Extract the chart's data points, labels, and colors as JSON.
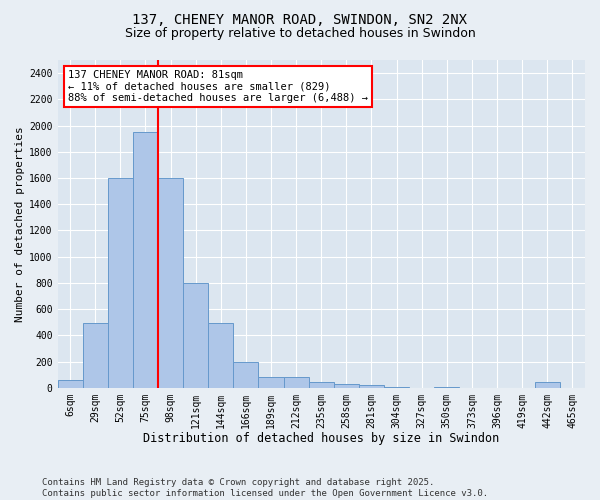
{
  "title": "137, CHENEY MANOR ROAD, SWINDON, SN2 2NX",
  "subtitle": "Size of property relative to detached houses in Swindon",
  "xlabel": "Distribution of detached houses by size in Swindon",
  "ylabel": "Number of detached properties",
  "categories": [
    "6sqm",
    "29sqm",
    "52sqm",
    "75sqm",
    "98sqm",
    "121sqm",
    "144sqm",
    "166sqm",
    "189sqm",
    "212sqm",
    "235sqm",
    "258sqm",
    "281sqm",
    "304sqm",
    "327sqm",
    "350sqm",
    "373sqm",
    "396sqm",
    "419sqm",
    "442sqm",
    "465sqm"
  ],
  "values": [
    60,
    490,
    1600,
    1950,
    1600,
    800,
    490,
    200,
    80,
    80,
    40,
    30,
    20,
    5,
    0,
    5,
    0,
    0,
    0,
    40,
    0
  ],
  "bar_color": "#aec6e8",
  "bar_edge_color": "#6699cc",
  "vline_color": "red",
  "vline_xidx": 3.5,
  "annotation_text": "137 CHENEY MANOR ROAD: 81sqm\n← 11% of detached houses are smaller (829)\n88% of semi-detached houses are larger (6,488) →",
  "ylim": [
    0,
    2500
  ],
  "yticks": [
    0,
    200,
    400,
    600,
    800,
    1000,
    1200,
    1400,
    1600,
    1800,
    2000,
    2200,
    2400
  ],
  "bg_color": "#e8eef4",
  "plot_bg_color": "#dce6f0",
  "grid_color": "white",
  "footer": "Contains HM Land Registry data © Crown copyright and database right 2025.\nContains public sector information licensed under the Open Government Licence v3.0."
}
